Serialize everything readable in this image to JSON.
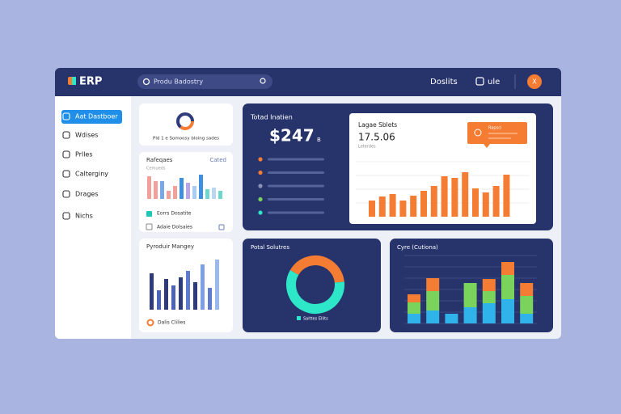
{
  "header": {
    "brand": "ERP",
    "search": "Produ Badostry",
    "link": "Doslits",
    "user_menu": "ule",
    "avatar": "X"
  },
  "sidebar": [
    "Aat Dastboer",
    "Wdises",
    "Prlles",
    "Calterginy",
    "Drages",
    "Nichs"
  ],
  "cards": {
    "summary": {
      "text": "Pld 1 e Somoosy bloing sades"
    },
    "requests": {
      "title": "Rafeqaes",
      "action": "Cated",
      "subtitle": "Cemueds",
      "values": [
        28,
        22,
        22,
        10,
        16,
        26,
        20,
        16,
        30,
        12,
        14,
        10
      ],
      "colors": [
        "#f4a09a",
        "#f4a09a",
        "#7aa7e8",
        "#f4a09a",
        "#f4a09a",
        "#3f8fe0",
        "#b9a6ea",
        "#a9cdf2",
        "#3f8fe0",
        "#6fd6cf",
        "#b9d7f0",
        "#6fd6cf"
      ],
      "items": [
        "Eorrs Dosatite",
        "Adaie Dolsaies"
      ]
    },
    "product": {
      "title": "Pyroduir Mangey",
      "footer": "Dalis Clilies",
      "values": [
        45,
        24,
        38,
        30,
        40,
        48,
        34,
        56,
        27,
        62
      ],
      "colors": [
        "#2f3b7a",
        "#4b63b8",
        "#2f3b7a",
        "#4b63b8",
        "#2f3b7a",
        "#5f7bd0",
        "#2f3b7a",
        "#7f9ee6",
        "#5f7bd0",
        "#9ab7ee"
      ]
    },
    "total": {
      "title": "Totad Inatien",
      "value": "$247",
      "unit": "B"
    },
    "sales": {
      "title": "Lagae Sblets",
      "value": "17.5.06",
      "subtitle": "Leterdes",
      "tooltip": "Rapsci",
      "color": "#f47c33",
      "values": [
        20,
        25,
        28,
        20,
        26,
        32,
        38,
        50,
        48,
        55,
        35,
        30,
        38,
        52
      ]
    },
    "solutions": {
      "title": "Potal Solutres",
      "legend": "Salttes Ellits",
      "values": [
        40,
        60
      ],
      "colors": [
        "#f47c33",
        "#2ee6c8"
      ]
    },
    "cycle": {
      "title": "Cyre (Cutiona)",
      "series": [
        {
          "color": "#2fb3ea",
          "values": [
            12,
            16,
            12,
            20,
            25,
            30,
            12
          ]
        },
        {
          "color": "#7ad35a",
          "values": [
            14,
            24,
            0,
            30,
            15,
            30,
            22
          ]
        },
        {
          "color": "#f47c33",
          "values": [
            10,
            16,
            0,
            0,
            15,
            16,
            16
          ]
        }
      ]
    }
  }
}
